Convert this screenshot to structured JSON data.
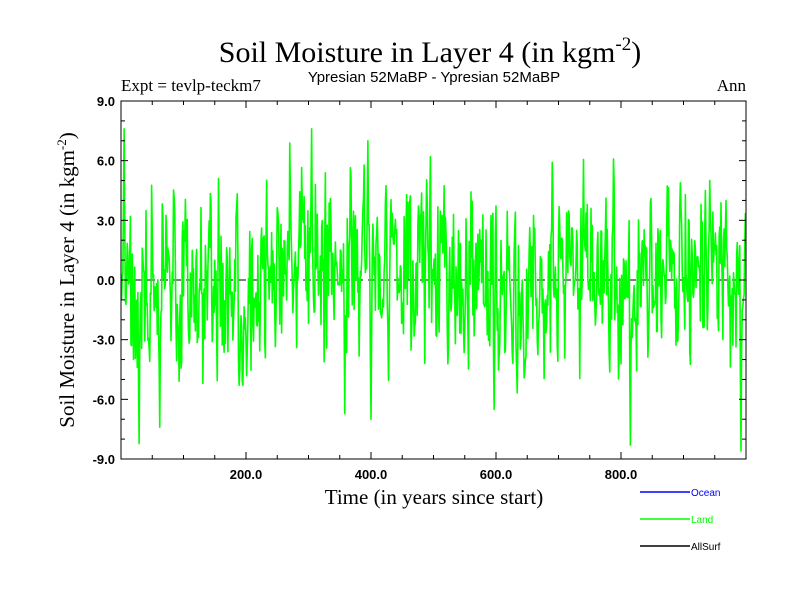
{
  "chart_data": {
    "type": "line",
    "title": "Soil Moisture in Layer 4 (in kgm",
    "title_sup": "-2",
    "title_close": ")",
    "subtitle_left": "Expt = tevlp-teckm7",
    "subtitle_center": "Ypresian  52MaBP - Ypresian  52MaBP",
    "subtitle_right": "Ann",
    "xlabel": "Time (in years since start)",
    "ylabel": "Soil Moisture in Layer 4 (in kgm",
    "ylabel_sup": "-2",
    "ylabel_close": ")",
    "xlim": [
      0,
      1000
    ],
    "ylim": [
      -9,
      9
    ],
    "xticks": [
      200,
      400,
      600,
      800
    ],
    "xtick_labels": [
      "200.0",
      "400.0",
      "600.0",
      "800.0"
    ],
    "yticks": [
      -9,
      -6,
      -3,
      0,
      3,
      6,
      9
    ],
    "ytick_labels": [
      "-9.0",
      "-6.0",
      "-3.0",
      "0.0",
      "3.0",
      "6.0",
      "9.0"
    ],
    "zero_line": "dashed",
    "series": [
      {
        "name": "Ocean",
        "color": "#0000ff",
        "values": []
      },
      {
        "name": "Land",
        "color": "#00ff00",
        "x_start": 1,
        "x_step": 1,
        "n_points": 999,
        "seed": 52,
        "envelope_extremes": [
          {
            "x": 5,
            "y": 7.6
          },
          {
            "x": 62,
            "y": -7.4
          },
          {
            "x": 305,
            "y": 7.6
          },
          {
            "x": 395,
            "y": 7.0
          },
          {
            "x": 400,
            "y": -7.0
          },
          {
            "x": 495,
            "y": 6.2
          },
          {
            "x": 597,
            "y": -6.5
          },
          {
            "x": 815,
            "y": -8.3
          },
          {
            "x": 935,
            "y": 4.5
          },
          {
            "x": 992,
            "y": -8.6
          }
        ]
      },
      {
        "name": "AllSurf",
        "color": "#000000",
        "values": []
      }
    ],
    "legend": {
      "placement": "bottom-right",
      "entries": [
        {
          "label": "Ocean",
          "color": "#0000ff"
        },
        {
          "label": "Land",
          "color": "#00ff00"
        },
        {
          "label": "AllSurf",
          "color": "#000000"
        }
      ]
    }
  }
}
